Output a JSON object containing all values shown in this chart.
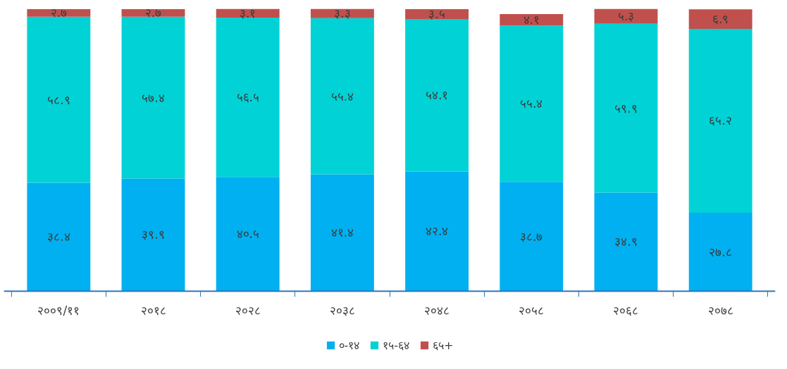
{
  "chart_data": {
    "type": "bar",
    "stacked": true,
    "legend": "bottom",
    "grid": false,
    "tick_labels": "x",
    "categories": [
      "२००९/११",
      "२०१८",
      "२०२८",
      "२०३८",
      "२०४८",
      "२०५८",
      "२०६८",
      "२०७८"
    ],
    "series": [
      {
        "name": "०-१४",
        "color": "#00b0f0",
        "values": [
          38.4,
          39.9,
          40.5,
          41.4,
          42.4,
          38.7,
          34.9,
          27.8
        ],
        "value_labels": [
          "३८.४",
          "३९.९",
          "४०.५",
          "४१.४",
          "४२.४",
          "३८.७",
          "३४.९",
          "२७.८"
        ]
      },
      {
        "name": "१५-६४",
        "color": "#00d2d6",
        "values": [
          58.9,
          57.4,
          56.5,
          55.4,
          54.1,
          55.4,
          59.9,
          65.2
        ],
        "value_labels": [
          "५८.९",
          "५७.४",
          "५६.५",
          "५५.४",
          "५४.१",
          "५५.४",
          "५९.९",
          "६५.२"
        ]
      },
      {
        "name": "६५+",
        "color": "#c0504d",
        "values": [
          2.7,
          2.7,
          3.1,
          3.3,
          3.5,
          4.1,
          5.3,
          6.9
        ],
        "value_labels": [
          "२.७",
          "२.७",
          "३.१",
          "३.३",
          "३.५",
          "४.१",
          "५.३",
          "६.९"
        ]
      }
    ]
  }
}
